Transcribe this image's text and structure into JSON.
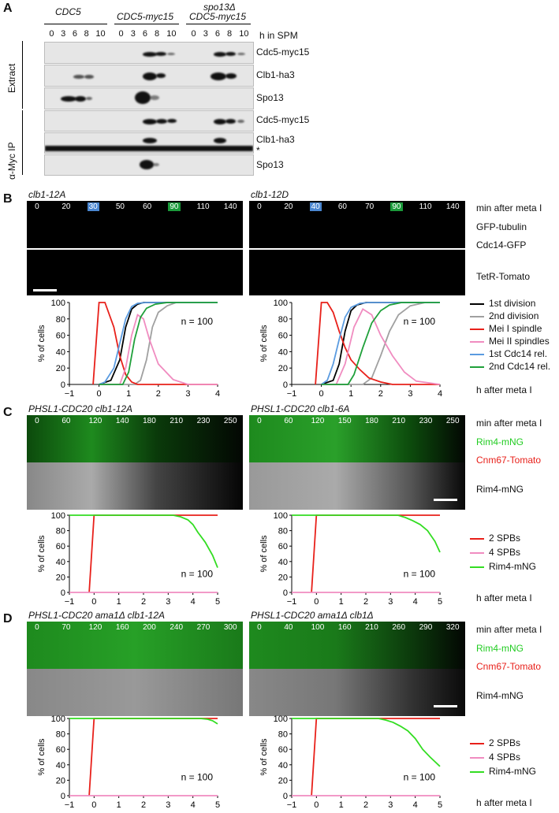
{
  "panelA": {
    "letter": "A",
    "strains": [
      "CDC5",
      "CDC5-myc15",
      "spo13Δ",
      "CDC5-myc15"
    ],
    "timepoints": [
      "0",
      "3",
      "6",
      "8",
      "10"
    ],
    "time_unit": "h in SPM",
    "section_extract": "Extract",
    "section_ip": "α-Myc IP",
    "rows_extract": [
      "Cdc5-myc15",
      "Clb1-ha3",
      "Spo13"
    ],
    "rows_ip": [
      "Cdc5-myc15",
      "Clb1-ha3",
      "*",
      "Spo13"
    ]
  },
  "panelB": {
    "letter": "B",
    "left_title": "clb1-12A",
    "right_title": "clb1-12D",
    "left_times": [
      "0",
      "20",
      "30",
      "50",
      "60",
      "90",
      "110",
      "140"
    ],
    "right_times": [
      "0",
      "20",
      "40",
      "60",
      "70",
      "90",
      "110",
      "140"
    ],
    "time_unit": "min after meta I",
    "channel1a": "GFP-tubulin",
    "channel1b": "Cdc14-GFP",
    "channel2": "TetR-Tomato",
    "n_label": "n = 100",
    "ylabel": "% of cells",
    "xlabel": "h after meta I",
    "legend": [
      "1st division",
      "2nd division",
      "Mei I spindle",
      "Mei II spindles",
      "1st Cdc14 rel.",
      "2nd Cdc14 rel."
    ]
  },
  "panelC": {
    "letter": "C",
    "left_title": "PHSL1-CDC20 clb1-12A",
    "right_title": "PHSL1-CDC20 clb1-6A",
    "left_times": [
      "0",
      "60",
      "120",
      "140",
      "180",
      "210",
      "230",
      "250"
    ],
    "right_times": [
      "0",
      "60",
      "120",
      "150",
      "180",
      "210",
      "230",
      "250"
    ],
    "time_unit": "min after meta I",
    "channel_green": "Rim4-mNG",
    "channel_red": "Cnm67-Tomato",
    "channel_gray": "Rim4-mNG",
    "n_label": "n = 100",
    "ylabel": "% of cells",
    "xlabel": "h after meta I",
    "legend": [
      "2 SPBs",
      "4 SPBs",
      "Rim4-mNG"
    ]
  },
  "panelD": {
    "letter": "D",
    "left_title": "PHSL1-CDC20 ama1Δ clb1-12A",
    "right_title": "PHSL1-CDC20 ama1Δ clb1Δ",
    "left_times": [
      "0",
      "70",
      "120",
      "160",
      "200",
      "240",
      "270",
      "300"
    ],
    "right_times": [
      "0",
      "40",
      "100",
      "160",
      "210",
      "260",
      "290",
      "320"
    ],
    "time_unit": "min after meta I",
    "channel_green": "Rim4-mNG",
    "channel_red": "Cnm67-Tomato",
    "channel_gray": "Rim4-mNG",
    "n_label": "n = 100",
    "ylabel": "% of cells",
    "xlabel": "h after meta I",
    "legend": [
      "2 SPBs",
      "4 SPBs",
      "Rim4-mNG"
    ]
  },
  "colors": {
    "first_div": "#000000",
    "second_div": "#a0a0a0",
    "mei1": "#e8201a",
    "mei2": "#f08cc0",
    "cdc14_1": "#5a9be0",
    "cdc14_2": "#1fa03a",
    "spb2": "#e8201a",
    "spb4": "#f08cc0",
    "rim4": "#33dd22",
    "chip_blue": "#4a86d0",
    "chip_green": "#1a9a3a"
  },
  "chart_data": [
    {
      "type": "line",
      "xlabel": "h after meta I",
      "ylabel": "% of cells",
      "xlim": [
        -1,
        4
      ],
      "ylim": [
        0,
        100
      ],
      "series": [
        {
          "name": "1st division",
          "x": [
            0,
            0.4,
            0.7,
            0.9,
            1.1,
            1.3,
            1.5,
            2,
            4
          ],
          "y": [
            0,
            5,
            30,
            70,
            92,
            98,
            100,
            100,
            100
          ]
        },
        {
          "name": "2nd division",
          "x": [
            0,
            1.2,
            1.4,
            1.6,
            1.8,
            2.0,
            2.3,
            2.6,
            4
          ],
          "y": [
            0,
            0,
            5,
            30,
            70,
            88,
            96,
            100,
            100
          ]
        },
        {
          "name": "Mei I spindle",
          "x": [
            -0.2,
            0,
            0.2,
            0.5,
            0.7,
            0.9,
            1.1,
            1.3,
            4
          ],
          "y": [
            0,
            100,
            100,
            70,
            35,
            12,
            3,
            0,
            0
          ]
        },
        {
          "name": "Mei II spindles",
          "x": [
            0,
            0.7,
            0.9,
            1.1,
            1.3,
            1.5,
            1.7,
            2.0,
            2.5,
            3,
            4
          ],
          "y": [
            0,
            0,
            20,
            60,
            85,
            80,
            55,
            25,
            6,
            0,
            0
          ]
        },
        {
          "name": "1st Cdc14 rel.",
          "x": [
            0,
            0.2,
            0.5,
            0.7,
            0.9,
            1.1,
            1.3,
            1.6,
            4
          ],
          "y": [
            0,
            3,
            20,
            50,
            80,
            95,
            99,
            100,
            100
          ]
        },
        {
          "name": "2nd Cdc14 rel.",
          "x": [
            0,
            0.8,
            1.0,
            1.2,
            1.4,
            1.6,
            1.9,
            2.3,
            4
          ],
          "y": [
            0,
            0,
            15,
            55,
            82,
            93,
            98,
            100,
            100
          ]
        }
      ]
    },
    {
      "type": "line",
      "xlabel": "h after meta I",
      "ylabel": "% of cells",
      "xlim": [
        -1,
        4
      ],
      "ylim": [
        0,
        100
      ],
      "series": [
        {
          "name": "1st division",
          "x": [
            0,
            0.4,
            0.6,
            0.8,
            1.0,
            1.2,
            1.5,
            2,
            4
          ],
          "y": [
            0,
            5,
            25,
            65,
            90,
            97,
            100,
            100,
            100
          ]
        },
        {
          "name": "2nd division",
          "x": [
            0,
            1.4,
            1.7,
            2.0,
            2.3,
            2.6,
            3.0,
            3.5,
            4
          ],
          "y": [
            0,
            0,
            8,
            35,
            65,
            85,
            96,
            100,
            100
          ]
        },
        {
          "name": "Mei I spindle",
          "x": [
            -0.2,
            0,
            0.2,
            0.4,
            0.6,
            0.8,
            1.0,
            1.3,
            1.6,
            2.0,
            2.4,
            4
          ],
          "y": [
            0,
            100,
            100,
            88,
            65,
            45,
            30,
            18,
            8,
            3,
            0,
            0
          ]
        },
        {
          "name": "Mei II spindles",
          "x": [
            0,
            0.5,
            0.8,
            1.1,
            1.4,
            1.7,
            2.0,
            2.4,
            2.8,
            3.2,
            4
          ],
          "y": [
            0,
            0,
            25,
            70,
            92,
            85,
            60,
            35,
            15,
            4,
            0
          ]
        },
        {
          "name": "1st Cdc14 rel.",
          "x": [
            0,
            0.2,
            0.4,
            0.6,
            0.8,
            1.0,
            1.3,
            1.6,
            4
          ],
          "y": [
            0,
            5,
            25,
            55,
            82,
            94,
            99,
            100,
            100
          ]
        },
        {
          "name": "2nd Cdc14 rel.",
          "x": [
            0,
            0.9,
            1.1,
            1.4,
            1.7,
            2.0,
            2.3,
            2.7,
            4
          ],
          "y": [
            0,
            0,
            12,
            45,
            75,
            90,
            97,
            100,
            100
          ]
        }
      ]
    },
    {
      "type": "line",
      "xlabel": "h after meta I",
      "ylabel": "% of cells",
      "xlim": [
        -1,
        5
      ],
      "ylim": [
        0,
        100
      ],
      "series": [
        {
          "name": "2 SPBs",
          "x": [
            -0.2,
            0,
            5
          ],
          "y": [
            0,
            100,
            100
          ]
        },
        {
          "name": "4 SPBs",
          "x": [
            -1,
            5
          ],
          "y": [
            0,
            0
          ]
        },
        {
          "name": "Rim4-mNG",
          "x": [
            -1,
            3.2,
            3.5,
            3.8,
            4.0,
            4.2,
            4.5,
            4.8,
            5.0
          ],
          "y": [
            100,
            100,
            98,
            94,
            88,
            78,
            65,
            48,
            32
          ]
        }
      ]
    },
    {
      "type": "line",
      "xlabel": "h after meta I",
      "ylabel": "% of cells",
      "xlim": [
        -1,
        5
      ],
      "ylim": [
        0,
        100
      ],
      "series": [
        {
          "name": "2 SPBs",
          "x": [
            -0.2,
            0,
            5
          ],
          "y": [
            0,
            100,
            100
          ]
        },
        {
          "name": "4 SPBs",
          "x": [
            -1,
            5
          ],
          "y": [
            0,
            0
          ]
        },
        {
          "name": "Rim4-mNG",
          "x": [
            -1,
            3.3,
            3.6,
            3.9,
            4.2,
            4.5,
            4.8,
            5.0
          ],
          "y": [
            100,
            100,
            97,
            93,
            88,
            80,
            66,
            52
          ]
        }
      ]
    },
    {
      "type": "line",
      "xlabel": "h after meta I",
      "ylabel": "% of cells",
      "xlim": [
        -1,
        5
      ],
      "ylim": [
        0,
        100
      ],
      "series": [
        {
          "name": "2 SPBs",
          "x": [
            -0.2,
            0,
            5
          ],
          "y": [
            0,
            100,
            100
          ]
        },
        {
          "name": "4 SPBs",
          "x": [
            -1,
            5
          ],
          "y": [
            0,
            0
          ]
        },
        {
          "name": "Rim4-mNG",
          "x": [
            -1,
            4.3,
            4.6,
            4.8,
            5.0
          ],
          "y": [
            100,
            100,
            99,
            97,
            93
          ]
        }
      ]
    },
    {
      "type": "line",
      "xlabel": "h after meta I",
      "ylabel": "% of cells",
      "xlim": [
        -1,
        5
      ],
      "ylim": [
        0,
        100
      ],
      "series": [
        {
          "name": "2 SPBs",
          "x": [
            -0.2,
            0,
            5
          ],
          "y": [
            0,
            100,
            100
          ]
        },
        {
          "name": "4 SPBs",
          "x": [
            -1,
            5
          ],
          "y": [
            0,
            0
          ]
        },
        {
          "name": "Rim4-mNG",
          "x": [
            -1,
            2.5,
            2.8,
            3.1,
            3.4,
            3.7,
            4.0,
            4.3,
            4.6,
            4.8,
            5.0
          ],
          "y": [
            100,
            100,
            98,
            95,
            90,
            84,
            74,
            60,
            50,
            44,
            38
          ]
        }
      ]
    }
  ]
}
